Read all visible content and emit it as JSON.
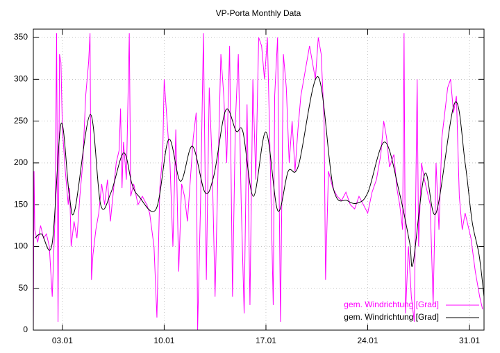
{
  "chart_data": {
    "type": "line",
    "title": "VP-Porta Monthly Data",
    "xlim": [
      1,
      32
    ],
    "xticks": [
      {
        "value": 3,
        "label": "03.01"
      },
      {
        "value": 10,
        "label": "10.01"
      },
      {
        "value": 17,
        "label": "17.01"
      },
      {
        "value": 24,
        "label": "24.01"
      },
      {
        "value": 31,
        "label": "31.01"
      }
    ],
    "ylim": [
      0,
      360
    ],
    "yticks": [
      0,
      50,
      100,
      150,
      200,
      250,
      300,
      350
    ],
    "grid": true,
    "legend": "lower right",
    "series": [
      {
        "name": "gem. Windrichtung [Grad]",
        "color": "#ff00ff",
        "smooth": false,
        "x": [
          1.0,
          1.05,
          1.1,
          1.3,
          1.5,
          1.7,
          1.9,
          2.1,
          2.3,
          2.5,
          2.6,
          2.7,
          2.8,
          2.9,
          3.0,
          3.2,
          3.4,
          3.5,
          3.6,
          3.8,
          4.0,
          4.2,
          4.4,
          4.6,
          4.8,
          4.9,
          5.0,
          5.1,
          5.3,
          5.5,
          5.7,
          5.9,
          6.1,
          6.3,
          6.5,
          6.7,
          6.9,
          7.0,
          7.1,
          7.2,
          7.4,
          7.6,
          7.7,
          7.9,
          8.2,
          8.5,
          8.8,
          9.0,
          9.3,
          9.5,
          9.7,
          9.9,
          10.0,
          10.2,
          10.4,
          10.6,
          10.8,
          11.0,
          11.2,
          11.4,
          11.6,
          11.8,
          12.0,
          12.2,
          12.3,
          12.5,
          12.7,
          12.9,
          13.1,
          13.3,
          13.5,
          13.7,
          13.9,
          14.1,
          14.3,
          14.5,
          14.7,
          14.9,
          15.1,
          15.3,
          15.5,
          15.7,
          15.9,
          16.1,
          16.3,
          16.5,
          16.7,
          16.9,
          17.1,
          17.3,
          17.5,
          17.6,
          17.8,
          18.0,
          18.2,
          18.4,
          18.6,
          18.8,
          19.0,
          19.2,
          19.4,
          19.6,
          19.8,
          20.0,
          20.2,
          20.4,
          20.6,
          20.8,
          21.0,
          21.1,
          21.3,
          21.6,
          21.9,
          22.2,
          22.5,
          22.8,
          23.1,
          23.4,
          23.7,
          24.0,
          24.3,
          24.6,
          24.9,
          25.1,
          25.3,
          25.5,
          25.8,
          26.0,
          26.2,
          26.4,
          26.5,
          26.6,
          26.8,
          27.0,
          27.2,
          27.4,
          27.5,
          27.7,
          27.9,
          28.1,
          28.3,
          28.5,
          28.7,
          28.9,
          29.1,
          29.3,
          29.5,
          29.7,
          29.9,
          30.1,
          30.3,
          30.5,
          30.7,
          31.1,
          31.4,
          31.7,
          31.9
        ],
        "values": [
          0,
          190,
          120,
          105,
          125,
          110,
          115,
          100,
          40,
          140,
          355,
          10,
          330,
          320,
          240,
          190,
          150,
          170,
          100,
          130,
          110,
          160,
          200,
          280,
          320,
          355,
          60,
          90,
          120,
          140,
          175,
          150,
          180,
          130,
          165,
          200,
          215,
          265,
          170,
          225,
          180,
          355,
          160,
          175,
          150,
          160,
          150,
          140,
          100,
          15,
          170,
          210,
          300,
          250,
          200,
          100,
          240,
          70,
          175,
          160,
          130,
          180,
          230,
          260,
          0,
          150,
          355,
          60,
          290,
          200,
          40,
          190,
          330,
          280,
          200,
          340,
          40,
          250,
          330,
          150,
          20,
          270,
          30,
          300,
          180,
          350,
          340,
          300,
          350,
          200,
          30,
          280,
          350,
          10,
          330,
          290,
          200,
          250,
          190,
          240,
          280,
          300,
          320,
          340,
          320,
          300,
          350,
          330,
          250,
          60,
          190,
          170,
          160,
          155,
          165,
          150,
          145,
          160,
          150,
          140,
          165,
          180,
          210,
          250,
          230,
          195,
          210,
          170,
          150,
          120,
          355,
          20,
          100,
          40,
          10,
          300,
          100,
          200,
          180,
          165,
          150,
          30,
          200,
          120,
          230,
          260,
          290,
          300,
          260,
          280,
          160,
          120,
          140,
          110,
          70,
          40,
          25
        ]
      },
      {
        "name": "gem. Windrichtung [Grad]",
        "color": "#000000",
        "smooth": true,
        "x": [
          1.1,
          1.57,
          2.29,
          2.91,
          3.48,
          3.87,
          4.92,
          5.63,
          6.35,
          7.21,
          7.78,
          8.26,
          9.45,
          10.31,
          11.12,
          11.94,
          12.8,
          13.42,
          14.23,
          14.95,
          15.42,
          16.14,
          17.0,
          17.81,
          18.53,
          19.24,
          20.58,
          21.63,
          22.59,
          23.3,
          24.02,
          25.16,
          26.17,
          26.88,
          27.12,
          27.93,
          28.7,
          29.99,
          30.7,
          31.18,
          31.66,
          32.0
        ],
        "values": [
          110,
          115,
          103,
          247,
          160,
          145,
          258,
          150,
          165,
          212,
          175,
          160,
          145,
          228,
          178,
          220,
          165,
          185,
          263,
          238,
          237,
          160,
          237,
          143,
          190,
          197,
          303,
          170,
          155,
          152,
          165,
          225,
          165,
          105,
          80,
          187,
          140,
          272,
          200,
          130,
          90,
          40
        ]
      }
    ]
  }
}
